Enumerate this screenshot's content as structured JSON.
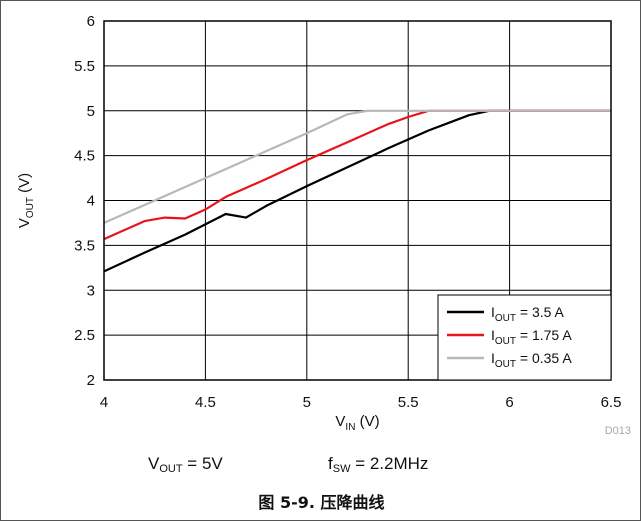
{
  "chart_data": {
    "type": "line",
    "xlabel": {
      "main": "V",
      "sub": "IN",
      "unit": " (V)"
    },
    "ylabel": {
      "main": "V",
      "sub": "OUT",
      "unit": " (V)"
    },
    "xlim": [
      4,
      6.5
    ],
    "ylim": [
      2,
      6
    ],
    "x_ticks": [
      "4",
      "4.5",
      "5",
      "5.5",
      "6",
      "6.5"
    ],
    "y_ticks": [
      "2",
      "2.5",
      "3",
      "3.5",
      "4",
      "4.5",
      "5",
      "5.5",
      "6"
    ],
    "grid": true,
    "legend_position": "bottom-right",
    "series": [
      {
        "name": {
          "main": "I",
          "sub": "OUT",
          "rest": " = 3.5 A"
        },
        "color": "#000000",
        "x": [
          4.0,
          4.2,
          4.4,
          4.6,
          4.7,
          4.8,
          5.0,
          5.2,
          5.4,
          5.6,
          5.8,
          5.9,
          6.0,
          6.5
        ],
        "y": [
          3.21,
          3.42,
          3.62,
          3.85,
          3.81,
          3.94,
          4.16,
          4.37,
          4.58,
          4.78,
          4.95,
          5.0,
          5.0,
          5.0
        ]
      },
      {
        "name": {
          "main": "I",
          "sub": "OUT",
          "rest": " = 1.75 A"
        },
        "color": "#e8141b",
        "x": [
          4.0,
          4.2,
          4.3,
          4.4,
          4.5,
          4.6,
          4.8,
          5.0,
          5.2,
          5.4,
          5.5,
          5.6,
          6.0,
          6.5
        ],
        "y": [
          3.57,
          3.77,
          3.81,
          3.8,
          3.9,
          4.04,
          4.24,
          4.45,
          4.65,
          4.85,
          4.93,
          5.0,
          5.0,
          5.0
        ]
      },
      {
        "name": {
          "main": "I",
          "sub": "OUT",
          "rest": " = 0.35 A"
        },
        "color": "#b8b8b8",
        "x": [
          4.0,
          4.2,
          4.4,
          4.6,
          4.8,
          5.0,
          5.2,
          5.3,
          6.0,
          6.5
        ],
        "y": [
          3.75,
          3.95,
          4.15,
          4.35,
          4.55,
          4.75,
          4.96,
          5.0,
          5.0,
          5.0
        ]
      }
    ],
    "chart_id": "D013"
  },
  "conditions": [
    {
      "main": "V",
      "sub": "OUT",
      "rest": " = 5V"
    },
    {
      "main": "f",
      "sub": "SW",
      "rest": " = 2.2MHz"
    }
  ],
  "caption": "图 5-9. 压降曲线"
}
